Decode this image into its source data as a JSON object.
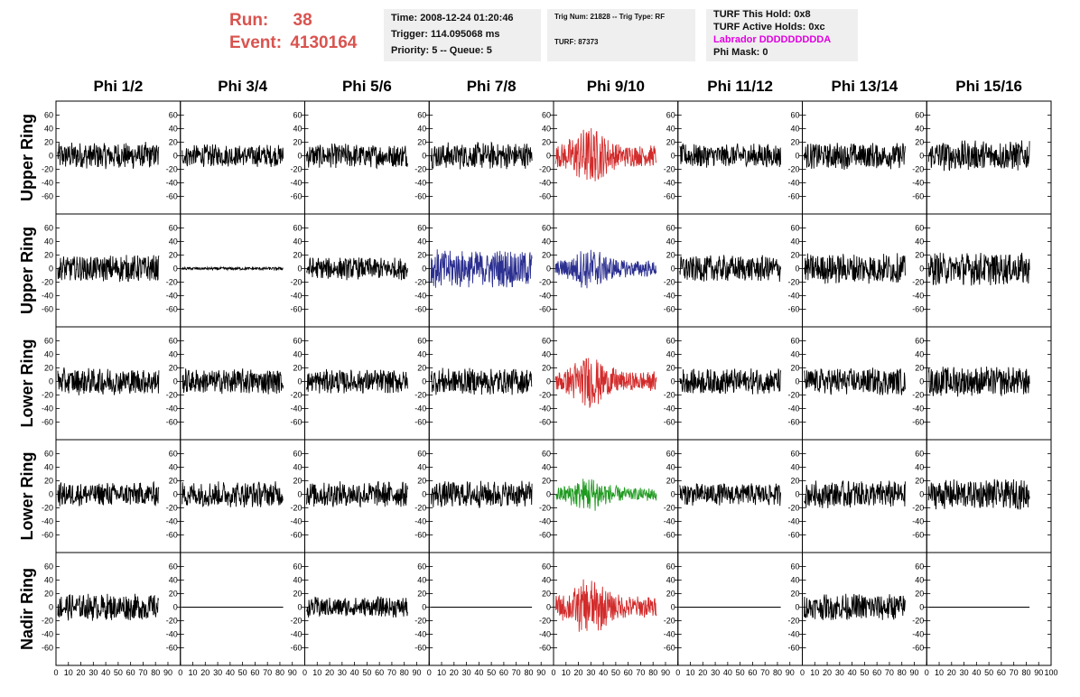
{
  "header": {
    "run_label": "Run:",
    "run_value": "38",
    "event_label": "Event:",
    "event_value": "4130164"
  },
  "info_time": {
    "time": "Time: 2008-12-24 01:20:46",
    "trigger": "Trigger: 114.095068 ms",
    "priority": "Priority: 5 -- Queue: 5"
  },
  "info_trig": {
    "trig": "Trig Num: 21828 -- Trig Type: RF",
    "turf": "TURF: 87373"
  },
  "info_turf": {
    "hold": "TURF This Hold: 0x8",
    "active": "TURF Active Holds: 0xc",
    "labrador": "Labrador DDDDDDDDDA",
    "phimask": "Phi Mask: 0"
  },
  "columns": [
    "Phi 1/2",
    "Phi 3/4",
    "Phi 5/6",
    "Phi 7/8",
    "Phi 9/10",
    "Phi 11/12",
    "Phi 13/14",
    "Phi 15/16"
  ],
  "rows": [
    "Upper Ring",
    "Upper Ring",
    "Lower Ring",
    "Lower Ring",
    "Nadir Ring"
  ],
  "colors": {
    "default": "#000000",
    "red": "#d22b2b",
    "blue": "#2b2f8f",
    "green": "#1f9a1f",
    "header_red": "#d9534f",
    "magenta": "#e000e0"
  },
  "chart_data": {
    "type": "line",
    "title": "",
    "xlabel": "",
    "ylabel": "",
    "xlim": [
      0,
      100
    ],
    "ylim": [
      -70,
      70
    ],
    "y_ticks": [
      -60,
      -40,
      -20,
      0,
      20,
      40,
      60
    ],
    "x_ticks": [
      0,
      10,
      20,
      30,
      40,
      50,
      60,
      70,
      80,
      90,
      100
    ],
    "grid": false,
    "panels": [
      [
        {
          "color": "default",
          "amp": 18
        },
        {
          "color": "default",
          "amp": 15
        },
        {
          "color": "default",
          "amp": 16
        },
        {
          "color": "default",
          "amp": 18
        },
        {
          "color": "red",
          "amp": 32,
          "burst": true
        },
        {
          "color": "default",
          "amp": 16
        },
        {
          "color": "default",
          "amp": 18
        },
        {
          "color": "default",
          "amp": 20
        }
      ],
      [
        {
          "color": "default",
          "amp": 18
        },
        {
          "color": "default",
          "amp": 2,
          "flat": true
        },
        {
          "color": "default",
          "amp": 15
        },
        {
          "color": "blue",
          "amp": 26
        },
        {
          "color": "blue",
          "amp": 24,
          "burst": true
        },
        {
          "color": "default",
          "amp": 18
        },
        {
          "color": "default",
          "amp": 20
        },
        {
          "color": "default",
          "amp": 22
        }
      ],
      [
        {
          "color": "default",
          "amp": 18
        },
        {
          "color": "default",
          "amp": 17
        },
        {
          "color": "default",
          "amp": 16
        },
        {
          "color": "default",
          "amp": 18
        },
        {
          "color": "red",
          "amp": 30,
          "burst": true
        },
        {
          "color": "default",
          "amp": 17
        },
        {
          "color": "default",
          "amp": 18
        },
        {
          "color": "default",
          "amp": 20
        }
      ],
      [
        {
          "color": "default",
          "amp": 16
        },
        {
          "color": "default",
          "amp": 17
        },
        {
          "color": "default",
          "amp": 17
        },
        {
          "color": "default",
          "amp": 18
        },
        {
          "color": "green",
          "amp": 20,
          "burst": true
        },
        {
          "color": "default",
          "amp": 15
        },
        {
          "color": "default",
          "amp": 18
        },
        {
          "color": "default",
          "amp": 20
        }
      ],
      [
        {
          "color": "default",
          "amp": 18
        },
        {
          "color": "default",
          "amp": 0,
          "zero": true
        },
        {
          "color": "default",
          "amp": 14
        },
        {
          "color": "default",
          "amp": 0,
          "zero": true
        },
        {
          "color": "red",
          "amp": 32,
          "burst": true
        },
        {
          "color": "default",
          "amp": 0,
          "zero": true
        },
        {
          "color": "default",
          "amp": 18
        },
        {
          "color": "default",
          "amp": 0,
          "zero": true
        }
      ]
    ]
  }
}
